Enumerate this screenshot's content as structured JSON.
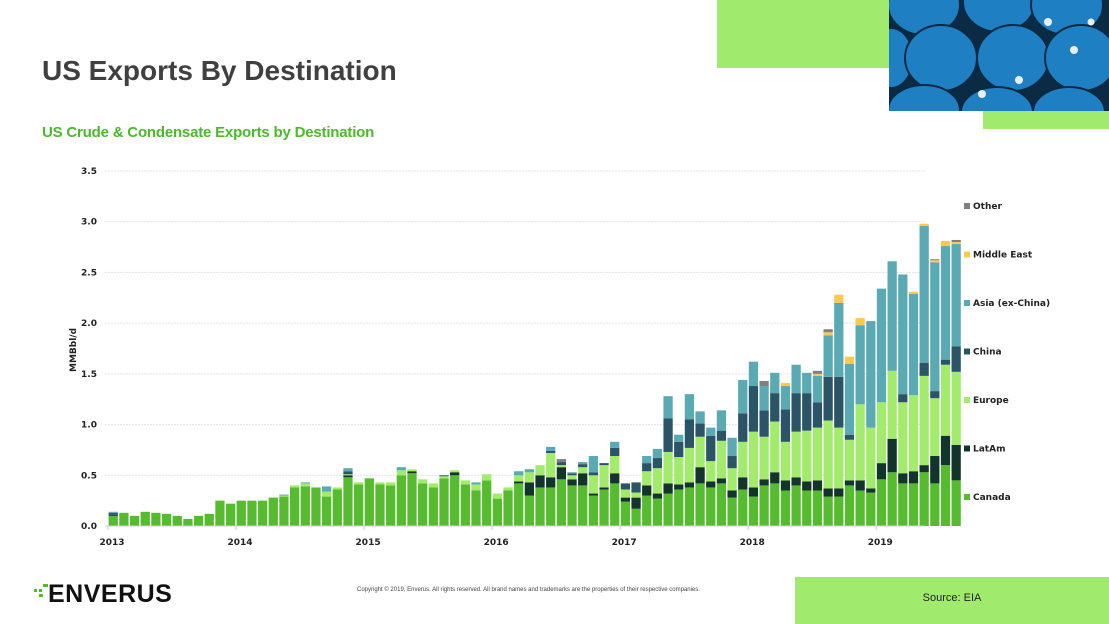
{
  "page": {
    "title": "US Exports By Destination",
    "subtitle": "US Crude & Condensate Exports by Destination",
    "source": "Source: EIA",
    "copyright": "Copyright © 2019, Enverus. All rights reserved. All brand names and trademarks are the properties of their respective companies.",
    "logo_text": "ENVERUS",
    "photo_description": "stacked blue oil barrels"
  },
  "colors": {
    "accent_green": "#a0eb6e",
    "subtitle_green": "#4cb82c",
    "title_gray": "#404040"
  },
  "chart_data": {
    "type": "bar",
    "stacked": true,
    "title": "US Crude & Condensate Exports by Destination",
    "xlabel": "",
    "ylabel": "MMBbl/d",
    "ylim": [
      0,
      3.5
    ],
    "yticks": [
      "0.0",
      "0.5",
      "1.0",
      "1.5",
      "2.0",
      "2.5",
      "3.0",
      "3.5"
    ],
    "ytick_values": [
      0,
      0.5,
      1.0,
      1.5,
      2.0,
      2.5,
      3.0,
      3.5
    ],
    "xtick_labels": [
      "2013",
      "2014",
      "2015",
      "2016",
      "2017",
      "2018",
      "2019"
    ],
    "x_start": "2013-01",
    "x_frequency": "monthly",
    "grid": true,
    "legend_position": "right",
    "legend_order": [
      "Other",
      "Middle East",
      "Asia (ex-China)",
      "China",
      "Europe",
      "LatAm",
      "Canada"
    ],
    "series": [
      {
        "name": "Canada",
        "color": "#57bb30",
        "values": [
          0.1,
          0.13,
          0.1,
          0.14,
          0.13,
          0.12,
          0.1,
          0.07,
          0.1,
          0.12,
          0.25,
          0.22,
          0.25,
          0.25,
          0.25,
          0.28,
          0.29,
          0.38,
          0.39,
          0.38,
          0.29,
          0.36,
          0.48,
          0.41,
          0.47,
          0.41,
          0.4,
          0.5,
          0.52,
          0.42,
          0.38,
          0.47,
          0.5,
          0.41,
          0.35,
          0.45,
          0.27,
          0.35,
          0.42,
          0.3,
          0.38,
          0.38,
          0.46,
          0.4,
          0.4,
          0.3,
          0.36,
          0.42,
          0.24,
          0.17,
          0.3,
          0.27,
          0.32,
          0.36,
          0.38,
          0.42,
          0.38,
          0.42,
          0.28,
          0.36,
          0.29,
          0.4,
          0.42,
          0.35,
          0.4,
          0.35,
          0.35,
          0.29,
          0.29,
          0.4,
          0.35,
          0.33,
          0.46,
          0.53,
          0.42,
          0.42,
          0.53,
          0.42,
          0.6,
          0.45
        ]
      },
      {
        "name": "LatAm",
        "color": "#12342b",
        "values": [
          0.01,
          0,
          0,
          0,
          0,
          0,
          0,
          0,
          0,
          0,
          0,
          0,
          0,
          0,
          0,
          0,
          0,
          0,
          0,
          0,
          0,
          0,
          0.02,
          0,
          0,
          0,
          0,
          0,
          0.02,
          0,
          0,
          0,
          0.03,
          0,
          0,
          0,
          0,
          0,
          0.02,
          0.13,
          0.12,
          0.1,
          0.12,
          0.06,
          0.12,
          0.02,
          0.02,
          0.1,
          0.04,
          0.11,
          0.1,
          0.05,
          0.1,
          0.05,
          0.05,
          0.16,
          0.06,
          0.05,
          0.07,
          0.12,
          0.09,
          0.06,
          0.11,
          0.1,
          0.08,
          0.09,
          0.1,
          0.08,
          0.08,
          0.05,
          0.1,
          0.04,
          0.16,
          0.33,
          0.1,
          0.12,
          0.07,
          0.27,
          0.29,
          0.35
        ]
      },
      {
        "name": "Europe",
        "color": "#a3eb6c",
        "values": [
          0,
          0,
          0,
          0,
          0,
          0,
          0,
          0,
          0,
          0,
          0,
          0,
          0,
          0,
          0,
          0,
          0.01,
          0.02,
          0.03,
          0,
          0.05,
          0.02,
          0.01,
          0.02,
          0,
          0.02,
          0.03,
          0.05,
          0.02,
          0.04,
          0.04,
          0.02,
          0.02,
          0.04,
          0.06,
          0.06,
          0.05,
          0.03,
          0.06,
          0.1,
          0.1,
          0.24,
          0.02,
          0.04,
          0.06,
          0.18,
          0.22,
          0.17,
          0.08,
          0.05,
          0.14,
          0.25,
          0.31,
          0.27,
          0.34,
          0.3,
          0.2,
          0.37,
          0.22,
          0.35,
          0.55,
          0.42,
          0.5,
          0.38,
          0.45,
          0.5,
          0.52,
          0.67,
          0.6,
          0.4,
          0.75,
          0.6,
          0.6,
          0.67,
          0.7,
          0.75,
          0.88,
          0.57,
          0.7,
          0.72
        ]
      },
      {
        "name": "China",
        "color": "#2b5566",
        "values": [
          0.02,
          0,
          0,
          0,
          0,
          0,
          0,
          0,
          0,
          0,
          0,
          0,
          0,
          0,
          0,
          0,
          0,
          0,
          0,
          0,
          0,
          0,
          0.03,
          0,
          0,
          0,
          0,
          0,
          0,
          0,
          0,
          0.01,
          0,
          0,
          0,
          0,
          0,
          0,
          0,
          0,
          0,
          0.02,
          0.03,
          0.02,
          0.03,
          0.03,
          0.02,
          0.08,
          0.06,
          0.1,
          0.08,
          0.1,
          0.33,
          0.15,
          0.28,
          0.13,
          0.25,
          0.1,
          0.12,
          0.28,
          0.45,
          0.26,
          0.28,
          0.32,
          0.38,
          0.37,
          0.25,
          0.43,
          0.5,
          0.05,
          0,
          0,
          0,
          0,
          0.08,
          0,
          0.13,
          0.07,
          0.05,
          0.25
        ]
      },
      {
        "name": "Asia (ex-China)",
        "color": "#5ba9b3",
        "values": [
          0.01,
          0,
          0,
          0,
          0,
          0,
          0,
          0,
          0,
          0,
          0,
          0,
          0,
          0,
          0,
          0,
          0.01,
          0,
          0.01,
          0,
          0.05,
          0,
          0.03,
          0,
          0,
          0,
          0,
          0.03,
          0,
          0,
          0,
          0,
          0,
          0,
          0.02,
          0,
          0,
          0,
          0.04,
          0.03,
          0,
          0.04,
          0,
          0.01,
          0.02,
          0.16,
          0,
          0.06,
          0,
          0,
          0.07,
          0.09,
          0.22,
          0.07,
          0.25,
          0.12,
          0.08,
          0.2,
          0.18,
          0.33,
          0.24,
          0.24,
          0.2,
          0.23,
          0.28,
          0.2,
          0.26,
          0.41,
          0.73,
          0.7,
          0.78,
          1.05,
          1.12,
          1.08,
          1.18,
          1.0,
          1.35,
          1.27,
          1.12,
          1.01
        ]
      },
      {
        "name": "Middle East",
        "color": "#fbc850",
        "values": [
          0,
          0,
          0,
          0,
          0,
          0,
          0,
          0,
          0,
          0,
          0,
          0,
          0,
          0,
          0,
          0,
          0,
          0,
          0,
          0,
          0,
          0,
          0,
          0,
          0,
          0,
          0,
          0,
          0,
          0,
          0,
          0,
          0,
          0,
          0,
          0,
          0,
          0,
          0,
          0,
          0,
          0,
          0,
          0,
          0,
          0,
          0,
          0,
          0,
          0,
          0,
          0,
          0,
          0,
          0,
          0,
          0,
          0,
          0,
          0,
          0,
          0,
          0,
          0.03,
          0,
          0,
          0.02,
          0.03,
          0.08,
          0.07,
          0.07,
          0,
          0,
          0,
          0,
          0.02,
          0.02,
          0.02,
          0.05,
          0.02,
          0.1,
          0.07
        ]
      },
      {
        "name": "Other",
        "color": "#808080",
        "values": [
          0,
          0,
          0,
          0,
          0,
          0,
          0,
          0,
          0,
          0,
          0,
          0,
          0,
          0,
          0,
          0,
          0,
          0,
          0,
          0,
          0,
          0,
          0,
          0,
          0,
          0,
          0,
          0,
          0,
          0,
          0,
          0,
          0,
          0,
          0,
          0,
          0,
          0,
          0,
          0,
          0,
          0,
          0.03,
          0,
          0,
          0,
          0,
          0,
          0,
          0,
          0,
          0,
          0,
          0,
          0,
          0,
          0,
          0,
          0,
          0,
          0,
          0.05,
          0,
          0,
          0,
          0,
          0.03,
          0.03,
          0,
          0,
          0,
          0,
          0,
          0,
          0,
          0,
          0,
          0.01,
          0,
          0.02,
          0.05
        ]
      }
    ]
  }
}
